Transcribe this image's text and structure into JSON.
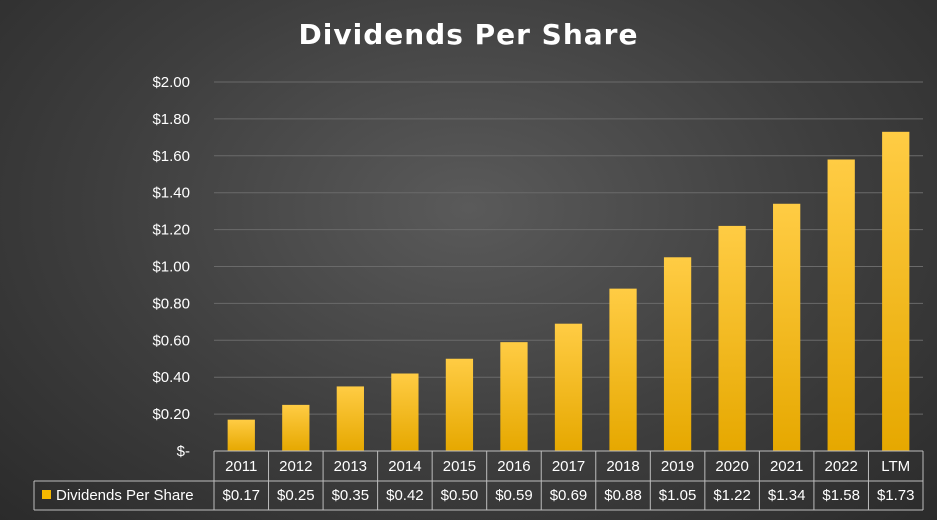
{
  "chart_data": {
    "type": "bar",
    "title": "Dividends Per Share",
    "categories": [
      "2011",
      "2012",
      "2013",
      "2014",
      "2015",
      "2016",
      "2017",
      "2018",
      "2019",
      "2020",
      "2021",
      "2022",
      "LTM"
    ],
    "series": [
      {
        "name": "Dividends Per Share",
        "values": [
          0.17,
          0.25,
          0.35,
          0.42,
          0.5,
          0.59,
          0.69,
          0.88,
          1.05,
          1.22,
          1.34,
          1.58,
          1.73
        ],
        "labels": [
          "$0.17",
          "$0.25",
          "$0.35",
          "$0.42",
          "$0.50",
          "$0.59",
          "$0.69",
          "$0.88",
          "$1.05",
          "$1.22",
          "$1.34",
          "$1.58",
          "$1.73"
        ]
      }
    ],
    "yticks": [
      0,
      0.2,
      0.4,
      0.6,
      0.8,
      1.0,
      1.2,
      1.4,
      1.6,
      1.8,
      2.0
    ],
    "ytick_labels": [
      "$-",
      "$0.20",
      "$0.40",
      "$0.60",
      "$0.80",
      "$1.00",
      "$1.20",
      "$1.40",
      "$1.60",
      "$1.80",
      "$2.00"
    ],
    "ylim": [
      0,
      2.0
    ],
    "grid": true,
    "legend": "data-table",
    "colors": {
      "bar_top": "#ffcc44",
      "bar_bottom": "#e6a800",
      "legend_key": "#f5b800",
      "grid": "#6a6a6a",
      "table_border": "#bdbdbd"
    }
  }
}
